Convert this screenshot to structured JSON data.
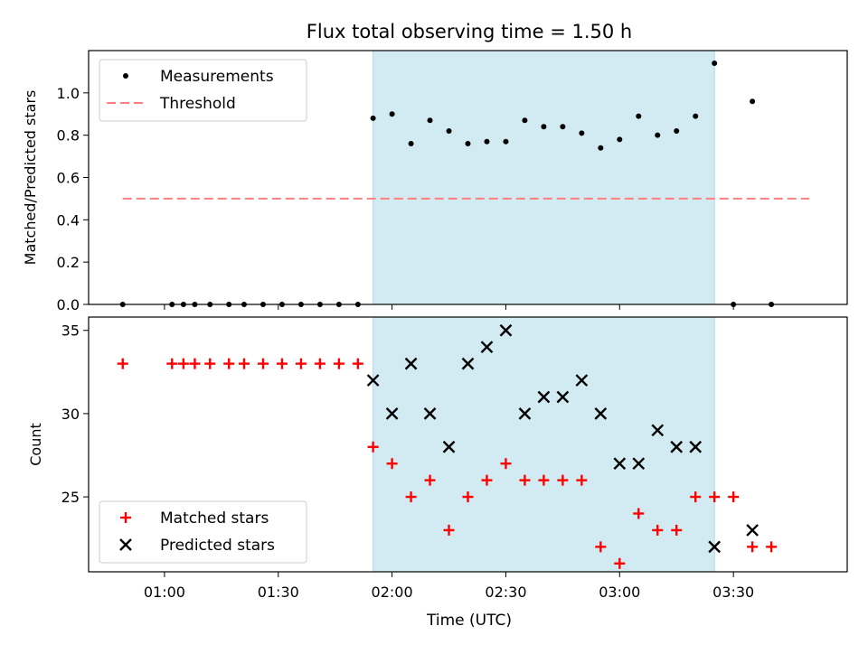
{
  "figure": {
    "title": "Flux total observing time = 1.50 h",
    "xlabel": "Time (UTC)"
  },
  "colors": {
    "shade": "#add8e6",
    "threshold": "#ff7f7f",
    "measurement": "#000000",
    "matched": "#ff0000",
    "predicted": "#000000"
  },
  "chart_data": [
    {
      "type": "scatter",
      "ylabel": "Matched/Predicted stars",
      "xlim": [
        "00:40",
        "04:00"
      ],
      "ylim": [
        0,
        1.2
      ],
      "yticks": [
        "0.0",
        "0.2",
        "0.4",
        "0.6",
        "0.8",
        "1.0"
      ],
      "shaded_span": [
        "01:55",
        "03:25"
      ],
      "legend": {
        "position": "upper-left",
        "entries": [
          "Measurements",
          "Threshold"
        ]
      },
      "threshold": {
        "name": "Threshold",
        "value": 0.5,
        "x_range": [
          "00:49",
          "03:50"
        ]
      },
      "series": [
        {
          "name": "Measurements",
          "marker": "dot",
          "points": [
            [
              "00:49",
              0.0
            ],
            [
              "01:02",
              0.0
            ],
            [
              "01:05",
              0.0
            ],
            [
              "01:08",
              0.0
            ],
            [
              "01:12",
              0.0
            ],
            [
              "01:17",
              0.0
            ],
            [
              "01:21",
              0.0
            ],
            [
              "01:26",
              0.0
            ],
            [
              "01:31",
              0.0
            ],
            [
              "01:36",
              0.0
            ],
            [
              "01:41",
              0.0
            ],
            [
              "01:46",
              0.0
            ],
            [
              "01:51",
              0.0
            ],
            [
              "01:55",
              0.88
            ],
            [
              "02:00",
              0.9
            ],
            [
              "02:05",
              0.76
            ],
            [
              "02:10",
              0.87
            ],
            [
              "02:15",
              0.82
            ],
            [
              "02:20",
              0.76
            ],
            [
              "02:25",
              0.77
            ],
            [
              "02:30",
              0.77
            ],
            [
              "02:35",
              0.87
            ],
            [
              "02:40",
              0.84
            ],
            [
              "02:45",
              0.84
            ],
            [
              "02:50",
              0.81
            ],
            [
              "02:55",
              0.74
            ],
            [
              "03:00",
              0.78
            ],
            [
              "03:05",
              0.89
            ],
            [
              "03:10",
              0.8
            ],
            [
              "03:15",
              0.82
            ],
            [
              "03:20",
              0.89
            ],
            [
              "03:25",
              1.14
            ],
            [
              "03:30",
              0.0
            ],
            [
              "03:35",
              0.96
            ],
            [
              "03:40",
              0.0
            ]
          ]
        }
      ]
    },
    {
      "type": "scatter",
      "ylabel": "Count",
      "xlim": [
        "00:40",
        "04:00"
      ],
      "ylim": [
        20.5,
        35.8
      ],
      "yticks": [
        "25",
        "30",
        "35"
      ],
      "xticks": [
        "01:00",
        "01:30",
        "02:00",
        "02:30",
        "03:00",
        "03:30"
      ],
      "shaded_span": [
        "01:55",
        "03:25"
      ],
      "legend": {
        "position": "lower-left",
        "entries": [
          "Matched stars",
          "Predicted stars"
        ]
      },
      "series": [
        {
          "name": "Matched stars",
          "marker": "plus",
          "points": [
            [
              "00:49",
              33
            ],
            [
              "01:02",
              33
            ],
            [
              "01:05",
              33
            ],
            [
              "01:08",
              33
            ],
            [
              "01:12",
              33
            ],
            [
              "01:17",
              33
            ],
            [
              "01:21",
              33
            ],
            [
              "01:26",
              33
            ],
            [
              "01:31",
              33
            ],
            [
              "01:36",
              33
            ],
            [
              "01:41",
              33
            ],
            [
              "01:46",
              33
            ],
            [
              "01:51",
              33
            ],
            [
              "01:55",
              28
            ],
            [
              "02:00",
              27
            ],
            [
              "02:05",
              25
            ],
            [
              "02:10",
              26
            ],
            [
              "02:15",
              23
            ],
            [
              "02:20",
              25
            ],
            [
              "02:25",
              26
            ],
            [
              "02:30",
              27
            ],
            [
              "02:35",
              26
            ],
            [
              "02:40",
              26
            ],
            [
              "02:45",
              26
            ],
            [
              "02:50",
              26
            ],
            [
              "02:55",
              22
            ],
            [
              "03:00",
              21
            ],
            [
              "03:05",
              24
            ],
            [
              "03:10",
              23
            ],
            [
              "03:15",
              23
            ],
            [
              "03:20",
              25
            ],
            [
              "03:25",
              25
            ],
            [
              "03:30",
              25
            ],
            [
              "03:35",
              22
            ],
            [
              "03:40",
              22
            ]
          ]
        },
        {
          "name": "Predicted stars",
          "marker": "x",
          "points": [
            [
              "01:55",
              32
            ],
            [
              "02:00",
              30
            ],
            [
              "02:05",
              33
            ],
            [
              "02:10",
              30
            ],
            [
              "02:15",
              28
            ],
            [
              "02:20",
              33
            ],
            [
              "02:25",
              34
            ],
            [
              "02:30",
              35
            ],
            [
              "02:35",
              30
            ],
            [
              "02:40",
              31
            ],
            [
              "02:45",
              31
            ],
            [
              "02:50",
              32
            ],
            [
              "02:55",
              30
            ],
            [
              "03:00",
              27
            ],
            [
              "03:05",
              27
            ],
            [
              "03:10",
              29
            ],
            [
              "03:15",
              28
            ],
            [
              "03:20",
              28
            ],
            [
              "03:25",
              22
            ],
            [
              "03:35",
              23
            ]
          ]
        }
      ]
    }
  ]
}
